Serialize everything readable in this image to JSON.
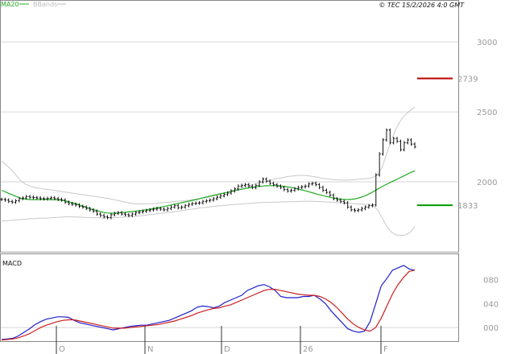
{
  "chart_data": [
    {
      "type": "line",
      "panel": "price",
      "title": "",
      "legend": [
        {
          "name": "MA20",
          "color": "#22aa22"
        },
        {
          "name": "BBands",
          "color": "#bbbbbb"
        }
      ],
      "copyright": "© TEC 15/2/2026 4:0 GMT",
      "ylim": [
        1500,
        3300
      ],
      "y_ticks": [
        {
          "value": 3000,
          "label": "3000"
        },
        {
          "value": 2500,
          "label": "2500"
        },
        {
          "value": 2000,
          "label": "2000"
        }
      ],
      "gridlines": [
        3000,
        2500,
        2000,
        1500
      ],
      "x_labels": [
        "O",
        "N",
        "D",
        "26",
        "F"
      ],
      "levels": [
        {
          "label": "2739",
          "value": 2739,
          "color": "#bb0000"
        },
        {
          "label": "1833",
          "value": 1833,
          "color": "#009900"
        }
      ],
      "close": [
        1875,
        1870,
        1860,
        1855,
        1865,
        1880,
        1885,
        1895,
        1890,
        1888,
        1885,
        1880,
        1878,
        1882,
        1886,
        1880,
        1875,
        1870,
        1855,
        1845,
        1840,
        1835,
        1825,
        1820,
        1810,
        1800,
        1790,
        1770,
        1760,
        1750,
        1745,
        1765,
        1775,
        1780,
        1770,
        1765,
        1760,
        1770,
        1780,
        1785,
        1790,
        1795,
        1800,
        1805,
        1810,
        1805,
        1800,
        1810,
        1820,
        1830,
        1815,
        1820,
        1830,
        1840,
        1845,
        1848,
        1850,
        1860,
        1865,
        1870,
        1880,
        1890,
        1900,
        1910,
        1920,
        1935,
        1950,
        1970,
        1975,
        1980,
        1970,
        1960,
        1975,
        2000,
        2020,
        2005,
        1990,
        1980,
        1970,
        1960,
        1945,
        1935,
        1940,
        1950,
        1960,
        1965,
        1970,
        1985,
        1990,
        1980,
        1960,
        1940,
        1925,
        1905,
        1880,
        1870,
        1860,
        1850,
        1820,
        1800,
        1795,
        1800,
        1810,
        1820,
        1830,
        1835,
        2050,
        2200,
        2300,
        2370,
        2280,
        2310,
        2290,
        2230,
        2280,
        2300,
        2270,
        2250
      ],
      "ma20": [
        1940,
        1928,
        1916,
        1904,
        1893,
        1882,
        1877,
        1874,
        1873,
        1873,
        1874,
        1875,
        1874,
        1873,
        1872,
        1870,
        1866,
        1860,
        1852,
        1845,
        1835,
        1825,
        1815,
        1806,
        1798,
        1790,
        1783,
        1778,
        1776,
        1776,
        1778,
        1781,
        1784,
        1787,
        1790,
        1793,
        1797,
        1801,
        1805,
        1810,
        1815,
        1820,
        1826,
        1832,
        1838,
        1844,
        1850,
        1856,
        1862,
        1868,
        1874,
        1881,
        1888,
        1895,
        1902,
        1908,
        1914,
        1920,
        1926,
        1932,
        1938,
        1944,
        1950,
        1955,
        1960,
        1964,
        1967,
        1970,
        1972,
        1973,
        1973,
        1972,
        1970,
        1966,
        1962,
        1957,
        1950,
        1943,
        1936,
        1928,
        1920,
        1912,
        1905,
        1898,
        1892,
        1886,
        1881,
        1877,
        1874,
        1874,
        1876,
        1880,
        1888,
        1898,
        1910,
        1925,
        1941,
        1957,
        1972,
        1986,
        2000,
        2013,
        2026,
        2040,
        2054,
        2068,
        2078
      ],
      "bb_upper": [
        2150,
        2120,
        2090,
        2050,
        2010,
        1985,
        1970,
        1960,
        1955,
        1950,
        1945,
        1940,
        1935,
        1930,
        1925,
        1920,
        1915,
        1910,
        1905,
        1900,
        1895,
        1890,
        1885,
        1880,
        1872,
        1865,
        1858,
        1850,
        1845,
        1842,
        1842,
        1843,
        1845,
        1847,
        1850,
        1853,
        1856,
        1860,
        1863,
        1866,
        1870,
        1875,
        1880,
        1885,
        1890,
        1898,
        1906,
        1915,
        1925,
        1935,
        1945,
        1955,
        1965,
        1975,
        1985,
        1995,
        2003,
        2010,
        2018,
        2025,
        2032,
        2038,
        2042,
        2045,
        2047,
        2045,
        2040,
        2035,
        2028,
        2022,
        2018,
        2015,
        2013,
        2012,
        2013,
        2015,
        2018,
        2022,
        2025,
        2030,
        2050,
        2100,
        2200,
        2300,
        2380,
        2440,
        2480,
        2510,
        2535
      ],
      "bb_lower": [
        1720,
        1722,
        1725,
        1728,
        1730,
        1733,
        1736,
        1738,
        1740,
        1741,
        1742,
        1744,
        1746,
        1748,
        1750,
        1750,
        1749,
        1748,
        1746,
        1745,
        1744,
        1743,
        1742,
        1742,
        1743,
        1745,
        1747,
        1750,
        1752,
        1755,
        1758,
        1762,
        1766,
        1770,
        1774,
        1778,
        1782,
        1786,
        1790,
        1795,
        1800,
        1805,
        1810,
        1815,
        1818,
        1822,
        1826,
        1830,
        1833,
        1835,
        1838,
        1840,
        1842,
        1845,
        1848,
        1850,
        1852,
        1853,
        1854,
        1855,
        1856,
        1857,
        1858,
        1859,
        1860,
        1861,
        1862,
        1861,
        1860,
        1858,
        1856,
        1854,
        1852,
        1850,
        1848,
        1846,
        1844,
        1842,
        1840,
        1838,
        1830,
        1800,
        1740,
        1680,
        1640,
        1620,
        1618,
        1620,
        1640,
        1680
      ]
    },
    {
      "type": "line",
      "panel": "indicator",
      "title": "MACD",
      "ylim": [
        -20,
        120
      ],
      "y_ticks": [
        {
          "value": 80,
          "label": "080"
        },
        {
          "value": 40,
          "label": "040"
        },
        {
          "value": 0,
          "label": "000"
        }
      ],
      "gridline": 0,
      "series": [
        {
          "name": "MACD",
          "color": "#1f1fcc",
          "values": [
            -20,
            -19,
            -18,
            -14,
            -8,
            -2,
            5,
            10,
            14,
            16,
            18,
            18,
            17,
            12,
            8,
            6,
            4,
            2,
            0,
            -2,
            -4,
            -2,
            0,
            2,
            3,
            4,
            4,
            6,
            8,
            10,
            12,
            16,
            20,
            24,
            28,
            34,
            36,
            35,
            33,
            36,
            42,
            46,
            50,
            54,
            62,
            66,
            70,
            72,
            68,
            62,
            52,
            50,
            50,
            50,
            52,
            52,
            54,
            48,
            40,
            28,
            18,
            8,
            -2,
            -6,
            -8,
            -6,
            10,
            40,
            70,
            82,
            96,
            100,
            104,
            98,
            96
          ]
        },
        {
          "name": "Signal",
          "color": "#cc1f1f",
          "values": [
            -21,
            -20,
            -19,
            -17,
            -14,
            -10,
            -5,
            0,
            4,
            7,
            10,
            12,
            13,
            13,
            11,
            9,
            7,
            5,
            3,
            1,
            -1,
            -1,
            -1,
            0,
            1,
            2,
            3,
            4,
            5,
            7,
            9,
            11,
            14,
            17,
            20,
            24,
            27,
            30,
            32,
            33,
            36,
            38,
            42,
            46,
            50,
            54,
            58,
            62,
            64,
            64,
            62,
            60,
            58,
            56,
            55,
            54,
            54,
            52,
            48,
            42,
            34,
            24,
            14,
            6,
            0,
            -4,
            -6,
            0,
            16,
            36,
            56,
            72,
            84,
            94,
            96
          ]
        }
      ]
    }
  ]
}
